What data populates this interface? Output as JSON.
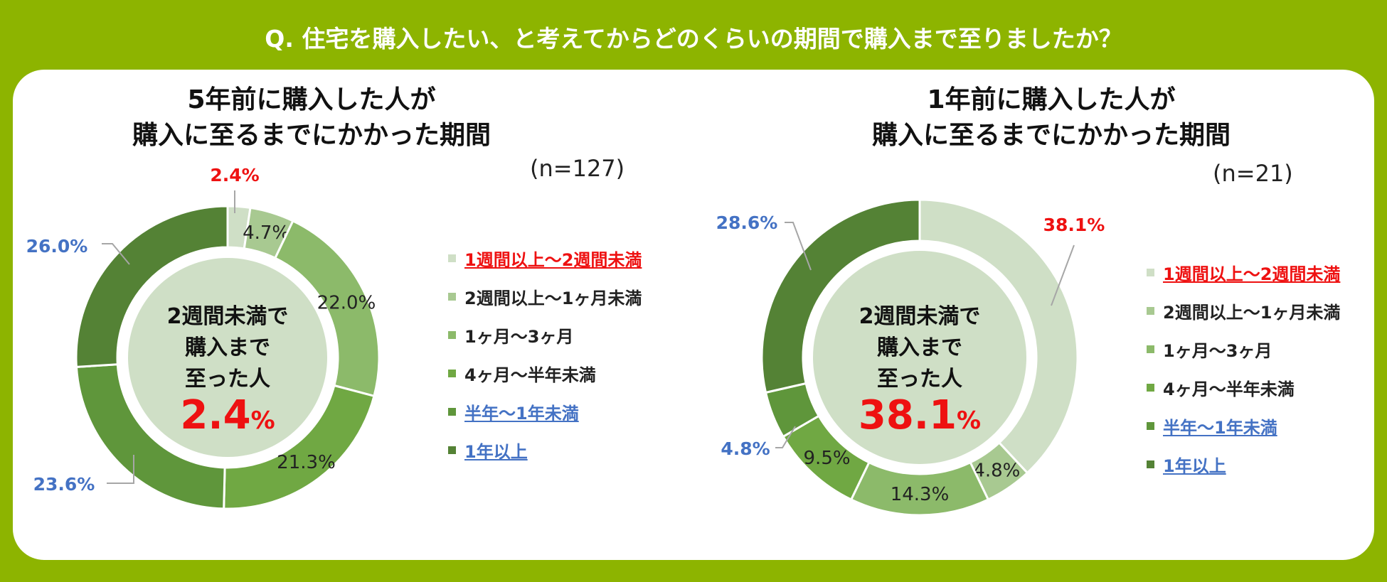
{
  "question": "Q. 住宅を購入したい、と考えてからどのくらいの期間で購入まで至りましたか？",
  "colors": {
    "background": "#8db400",
    "highlight_red": "#ee1111",
    "highlight_blue": "#4472c4",
    "segments": [
      "#cfdfc6",
      "#a8c991",
      "#8cba6a",
      "#70a843",
      "#5f963b",
      "#548235"
    ]
  },
  "chart_data": [
    {
      "type": "pie",
      "variant": "donut",
      "title_line1": "5年前に購入した人が",
      "title_line2": "購入に至るまでにかかった期間",
      "n_label": "(n=127)",
      "categories": [
        "1週間以上～2週間未満",
        "2週間以上～1ヶ月未満",
        "1ヶ月～3ヶ月",
        "4ヶ月～半年未満",
        "半年～1年未満",
        "1年以上"
      ],
      "values": [
        2.4,
        4.7,
        22.0,
        21.3,
        23.6,
        26.0
      ],
      "value_labels": [
        "2.4%",
        "4.7%",
        "22.0%",
        "21.3%",
        "23.6%",
        "26.0%"
      ],
      "label_styles": [
        "red",
        "normal",
        "normal",
        "normal",
        "blue",
        "blue"
      ],
      "center_text": [
        "2週間未満で",
        "購入まで",
        "至った人"
      ],
      "center_value": "2.4",
      "center_unit": "%",
      "legend_placement": "right"
    },
    {
      "type": "pie",
      "variant": "donut",
      "title_line1": "1年前に購入した人が",
      "title_line2": "購入に至るまでにかかった期間",
      "n_label": "(n=21)",
      "categories": [
        "1週間以上～2週間未満",
        "2週間以上～1ヶ月未満",
        "1ヶ月～3ヶ月",
        "4ヶ月～半年未満",
        "半年～1年未満",
        "1年以上"
      ],
      "values": [
        38.1,
        4.8,
        14.3,
        9.5,
        4.8,
        28.6
      ],
      "value_labels": [
        "38.1%",
        "4.8%",
        "14.3%",
        "9.5%",
        "4.8%",
        "28.6%"
      ],
      "label_styles": [
        "red",
        "normal",
        "normal",
        "normal",
        "blue",
        "blue"
      ],
      "center_text": [
        "2週間未満で",
        "購入まで",
        "至った人"
      ],
      "center_value": "38.1",
      "center_unit": "%",
      "legend_placement": "right"
    }
  ]
}
